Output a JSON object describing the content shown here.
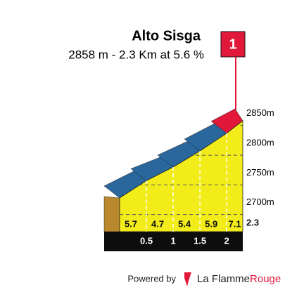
{
  "chart_data": {
    "type": "climb-profile",
    "title": "Alto Sisga",
    "subtitle": "2858 m - 2.3 Km at 5.6 %",
    "flag": "1",
    "x": [
      0.5,
      1.0,
      1.5,
      2.0,
      2.3
    ],
    "xlim": [
      0,
      2.3
    ],
    "start_elevation": 2728,
    "values": [
      2757,
      2780,
      2807,
      2837,
      2858
    ],
    "gradients": [
      5.7,
      4.7,
      5.4,
      5.9,
      7.1
    ],
    "top_colors": [
      "#2a679c",
      "#2a679c",
      "#2a679c",
      "#2a679c",
      "#e2183a"
    ],
    "color": "#f2ec1a",
    "yticks": [
      {
        "value": 2700,
        "label": "2700m"
      },
      {
        "value": 2750,
        "label": "2750m"
      },
      {
        "value": 2800,
        "label": "2800m"
      },
      {
        "value": 2850,
        "label": "2850m"
      }
    ]
  },
  "footer": {
    "powered": "Powered by",
    "brand": [
      "La Flamme",
      "Rouge"
    ]
  }
}
